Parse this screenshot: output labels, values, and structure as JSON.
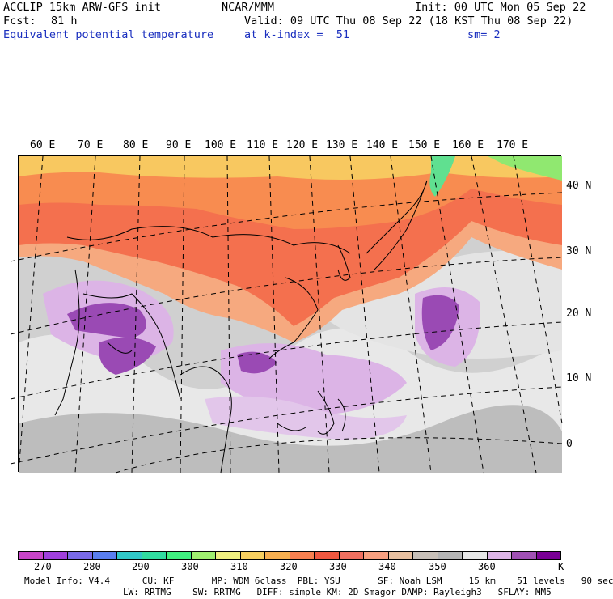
{
  "header": {
    "model": "ACCLIP 15km ARW-GFS init",
    "org": "NCAR/MMM",
    "init": "Init: 00 UTC Mon 05 Sep 22",
    "fcst_label": "Fcst:",
    "fcst_value": "81 h",
    "valid": "Valid: 09 UTC Thu 08 Sep 22 (18 KST Thu 08 Sep 22)",
    "field": "Equivalent potential temperature",
    "level": "at k-index =  51",
    "smooth": "sm= 2"
  },
  "map": {
    "lon_labels": [
      "60 E",
      "70 E",
      "80 E",
      "90 E",
      "100 E",
      "110 E",
      "120 E",
      "130 E",
      "140 E",
      "150 E",
      "160 E",
      "170 E"
    ],
    "lat_labels": [
      "40 N",
      "30 N",
      "20 N",
      "10 N",
      "0"
    ]
  },
  "colorbar": {
    "colors": [
      "#c845c8",
      "#a040dc",
      "#7a6ae8",
      "#5a7ff0",
      "#30c8c8",
      "#30dca0",
      "#40f080",
      "#a0f070",
      "#f0f080",
      "#f8d060",
      "#f8b050",
      "#f88050",
      "#f05840",
      "#f07060",
      "#f8a080",
      "#e8c0a0",
      "#c8c0b8",
      "#b4b4b4",
      "#e6e6e6",
      "#dcb4e6",
      "#a050b4",
      "#7a0096"
    ],
    "labels": [
      "270",
      "280",
      "290",
      "300",
      "310",
      "320",
      "330",
      "340",
      "350",
      "360",
      "K"
    ],
    "ticks_range": [
      265,
      375
    ]
  },
  "footer": {
    "line1": "Model Info: V4.4      CU: KF       MP: WDM 6class  PBL: YSU       SF: Noah LSM     15 km    51 levels   90 sec",
    "line2": "LW: RRTMG    SW: RRTMG   DIFF: simple KM: 2D Smagor DAMP: Rayleigh3   SFLAY: MM5"
  }
}
